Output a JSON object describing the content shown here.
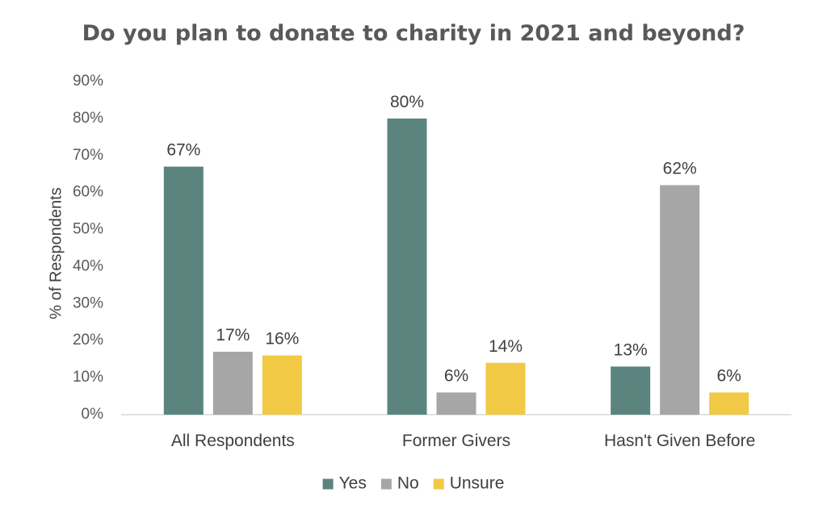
{
  "chart_data": {
    "type": "bar",
    "title": "Do you plan to donate to charity in 2021 and beyond?",
    "ylabel": "% of Respondents",
    "xlabel": "",
    "categories": [
      "All Respondents",
      "Former Givers",
      "Hasn't Given Before"
    ],
    "series": [
      {
        "name": "Yes",
        "values": [
          67,
          80,
          13
        ],
        "labels": [
          "67%",
          "80%",
          "13%"
        ],
        "color": "#5B847F"
      },
      {
        "name": "No",
        "values": [
          17,
          6,
          62
        ],
        "labels": [
          "17%",
          "6%",
          "62%"
        ],
        "color": "#A6A6A6"
      },
      {
        "name": "Unsure",
        "values": [
          16,
          14,
          6
        ],
        "labels": [
          "16%",
          "14%",
          "6%"
        ],
        "color": "#F1C945"
      }
    ],
    "ylim": [
      0,
      90
    ],
    "yticks": [
      "0%",
      "10%",
      "20%",
      "30%",
      "40%",
      "50%",
      "60%",
      "70%",
      "80%",
      "90%"
    ],
    "grid": false,
    "legend": "bottom"
  }
}
